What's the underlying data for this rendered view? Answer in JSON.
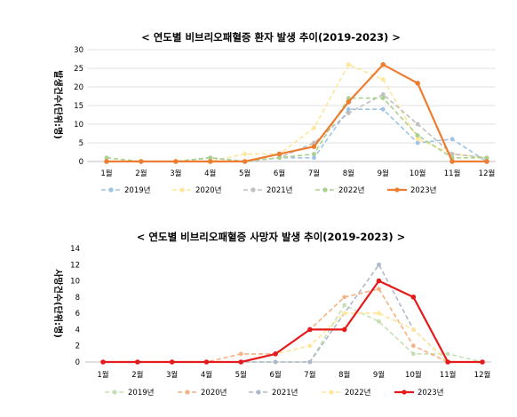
{
  "chart_data": [
    {
      "type": "line",
      "title": "< 연도별 비브리오패혈증 환자 발생 추이(2019-2023) >",
      "ylabel": "발생건수(단위:명)",
      "categories": [
        "1월",
        "2월",
        "3월",
        "4월",
        "5월",
        "6월",
        "7월",
        "8월",
        "9월",
        "10월",
        "11월",
        "12월"
      ],
      "ylim": [
        0,
        30
      ],
      "yticks": [
        0,
        5,
        10,
        15,
        20,
        25,
        30
      ],
      "grid": true,
      "legend_position": "bottom",
      "series": [
        {
          "name": "2019년",
          "color": "#9dc3e6",
          "dash": true,
          "values": [
            0,
            0,
            0,
            1,
            0,
            1,
            1,
            14,
            14,
            5,
            6,
            0
          ]
        },
        {
          "name": "2020년",
          "color": "#ffe699",
          "dash": true,
          "values": [
            0,
            0,
            0,
            0,
            2,
            2,
            9,
            26,
            22,
            6,
            2,
            1
          ]
        },
        {
          "name": "2021년",
          "color": "#bfbfbf",
          "dash": true,
          "values": [
            0,
            0,
            0,
            1,
            0,
            1,
            5,
            13,
            18,
            10,
            2,
            1
          ]
        },
        {
          "name": "2022년",
          "color": "#a9d18e",
          "dash": true,
          "values": [
            1,
            0,
            0,
            1,
            0,
            1,
            2,
            17,
            17,
            7,
            1,
            1
          ]
        },
        {
          "name": "2023년",
          "color": "#ed7d31",
          "dash": false,
          "values": [
            0,
            0,
            0,
            0,
            0,
            2,
            4,
            16,
            26,
            21,
            0,
            0
          ]
        }
      ]
    },
    {
      "type": "line",
      "title": "< 연도별 비브리오패혈증 사망자 발생 추이(2019-2023) >",
      "ylabel": "사망건수(단위:명)",
      "categories": [
        "1월",
        "2월",
        "3월",
        "4월",
        "5월",
        "6월",
        "7월",
        "8월",
        "9월",
        "10월",
        "11월",
        "12월"
      ],
      "ylim": [
        0,
        14
      ],
      "yticks": [
        0,
        2,
        4,
        6,
        8,
        10,
        12,
        14
      ],
      "grid": false,
      "legend_position": "bottom",
      "series": [
        {
          "name": "2019년",
          "color": "#c5e0b4",
          "dash": true,
          "values": [
            0,
            0,
            0,
            0,
            0,
            0,
            0,
            7,
            5,
            1,
            1,
            0
          ]
        },
        {
          "name": "2020년",
          "color": "#f4b183",
          "dash": true,
          "values": [
            0,
            0,
            0,
            0,
            1,
            1,
            4,
            8,
            9,
            2,
            0,
            0
          ]
        },
        {
          "name": "2021년",
          "color": "#adb9ca",
          "dash": true,
          "values": [
            0,
            0,
            0,
            0,
            0,
            0,
            0,
            6,
            12,
            4,
            0,
            0
          ]
        },
        {
          "name": "2022년",
          "color": "#ffe699",
          "dash": true,
          "values": [
            0,
            0,
            0,
            0,
            0,
            1,
            2,
            6,
            6,
            4,
            0,
            0
          ]
        },
        {
          "name": "2023년",
          "color": "#e41a1c",
          "dash": false,
          "values": [
            0,
            0,
            0,
            0,
            0,
            1,
            4,
            4,
            10,
            8,
            0,
            0
          ]
        }
      ]
    }
  ]
}
